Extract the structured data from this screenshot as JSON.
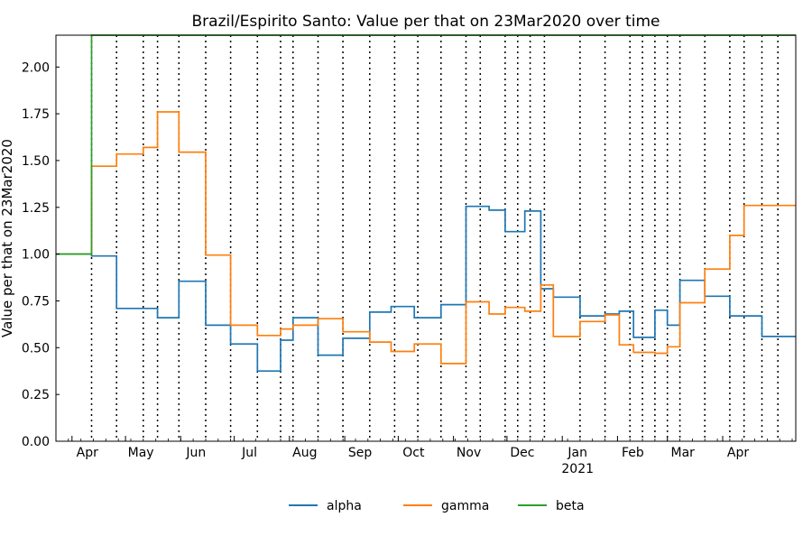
{
  "chart_data": {
    "type": "line",
    "title": "Brazil/Espirito Santo: Value per that on 23Mar2020 over time",
    "xlabel": "",
    "ylabel": "Value per that on 23Mar2020",
    "ylim": [
      0,
      2.17
    ],
    "xlim": [
      "2020-03-23",
      "2021-05-12"
    ],
    "yticks": [
      0.0,
      0.25,
      0.5,
      0.75,
      1.0,
      1.25,
      1.5,
      1.75,
      2.0
    ],
    "ytick_labels": [
      "0.00",
      "0.25",
      "0.50",
      "0.75",
      "1.00",
      "1.25",
      "1.50",
      "1.75",
      "2.00"
    ],
    "xticks": [
      {
        "date": "2020-04-01",
        "label": "Apr"
      },
      {
        "date": "2020-05-01",
        "label": "May"
      },
      {
        "date": "2020-06-01",
        "label": "Jun"
      },
      {
        "date": "2020-07-01",
        "label": "Jul"
      },
      {
        "date": "2020-08-01",
        "label": "Aug"
      },
      {
        "date": "2020-09-01",
        "label": "Sep"
      },
      {
        "date": "2020-10-01",
        "label": "Oct"
      },
      {
        "date": "2020-11-01",
        "label": "Nov"
      },
      {
        "date": "2020-12-01",
        "label": "Dec"
      },
      {
        "date": "2021-01-01",
        "label": "Jan",
        "sublabel": "2021"
      },
      {
        "date": "2021-02-01",
        "label": "Feb"
      },
      {
        "date": "2021-03-01",
        "label": "Mar"
      },
      {
        "date": "2021-04-01",
        "label": "Apr"
      }
    ],
    "vlines": [
      "2020-04-12",
      "2020-04-26",
      "2020-05-11",
      "2020-05-19",
      "2020-05-31",
      "2020-06-15",
      "2020-06-29",
      "2020-07-14",
      "2020-07-27",
      "2020-08-03",
      "2020-08-17",
      "2020-08-31",
      "2020-09-15",
      "2020-09-29",
      "2020-10-12",
      "2020-10-25",
      "2020-11-08",
      "2020-11-16",
      "2020-11-30",
      "2020-12-07",
      "2020-12-14",
      "2020-12-22",
      "2021-01-11",
      "2021-01-25",
      "2021-02-08",
      "2021-02-15",
      "2021-02-22",
      "2021-03-01",
      "2021-03-08",
      "2021-03-22",
      "2021-04-05",
      "2021-04-13",
      "2021-04-23",
      "2021-05-02"
    ],
    "grid": false,
    "legend_position": "bottom-center",
    "series": [
      {
        "name": "alpha",
        "color": "#1f77b4",
        "steps": [
          [
            "2020-03-23",
            1.0
          ],
          [
            "2020-04-12",
            0.99
          ],
          [
            "2020-04-26",
            0.71
          ],
          [
            "2020-05-19",
            0.66
          ],
          [
            "2020-05-31",
            0.855
          ],
          [
            "2020-06-15",
            0.62
          ],
          [
            "2020-06-29",
            0.52
          ],
          [
            "2020-07-14",
            0.375
          ],
          [
            "2020-07-27",
            0.54
          ],
          [
            "2020-08-03",
            0.66
          ],
          [
            "2020-08-17",
            0.46
          ],
          [
            "2020-08-31",
            0.55
          ],
          [
            "2020-09-15",
            0.69
          ],
          [
            "2020-09-27",
            0.72
          ],
          [
            "2020-10-10",
            0.66
          ],
          [
            "2020-10-25",
            0.73
          ],
          [
            "2020-11-08",
            1.255
          ],
          [
            "2020-11-21",
            1.235
          ],
          [
            "2020-11-30",
            1.12
          ],
          [
            "2020-12-11",
            1.23
          ],
          [
            "2020-12-20",
            0.815
          ],
          [
            "2020-12-27",
            0.77
          ],
          [
            "2021-01-11",
            0.67
          ],
          [
            "2021-01-25",
            0.68
          ],
          [
            "2021-02-02",
            0.695
          ],
          [
            "2021-02-10",
            0.555
          ],
          [
            "2021-02-22",
            0.7
          ],
          [
            "2021-03-01",
            0.62
          ],
          [
            "2021-03-08",
            0.86
          ],
          [
            "2021-03-22",
            0.775
          ],
          [
            "2021-04-05",
            0.67
          ],
          [
            "2021-04-23",
            0.56
          ],
          [
            "2021-05-12",
            0.56
          ]
        ]
      },
      {
        "name": "gamma",
        "color": "#ff7f0e",
        "steps": [
          [
            "2020-03-23",
            1.0
          ],
          [
            "2020-04-12",
            1.47
          ],
          [
            "2020-04-26",
            1.535
          ],
          [
            "2020-05-11",
            1.57
          ],
          [
            "2020-05-19",
            1.76
          ],
          [
            "2020-05-31",
            1.545
          ],
          [
            "2020-06-15",
            0.995
          ],
          [
            "2020-06-29",
            0.62
          ],
          [
            "2020-07-14",
            0.565
          ],
          [
            "2020-07-27",
            0.6
          ],
          [
            "2020-08-03",
            0.62
          ],
          [
            "2020-08-17",
            0.655
          ],
          [
            "2020-08-31",
            0.585
          ],
          [
            "2020-09-15",
            0.53
          ],
          [
            "2020-09-27",
            0.48
          ],
          [
            "2020-10-10",
            0.52
          ],
          [
            "2020-10-25",
            0.415
          ],
          [
            "2020-11-08",
            0.745
          ],
          [
            "2020-11-21",
            0.68
          ],
          [
            "2020-11-30",
            0.715
          ],
          [
            "2020-12-11",
            0.695
          ],
          [
            "2020-12-20",
            0.835
          ],
          [
            "2020-12-27",
            0.56
          ],
          [
            "2021-01-11",
            0.64
          ],
          [
            "2021-01-25",
            0.675
          ],
          [
            "2021-02-02",
            0.515
          ],
          [
            "2021-02-10",
            0.475
          ],
          [
            "2021-02-22",
            0.47
          ],
          [
            "2021-03-01",
            0.505
          ],
          [
            "2021-03-08",
            0.74
          ],
          [
            "2021-03-22",
            0.92
          ],
          [
            "2021-04-05",
            1.1
          ],
          [
            "2021-04-13",
            1.26
          ],
          [
            "2021-05-12",
            1.26
          ]
        ]
      },
      {
        "name": "beta",
        "color": "#2ca02c",
        "steps": [
          [
            "2020-03-23",
            1.0
          ],
          [
            "2020-04-12",
            2.17
          ]
        ]
      }
    ]
  }
}
